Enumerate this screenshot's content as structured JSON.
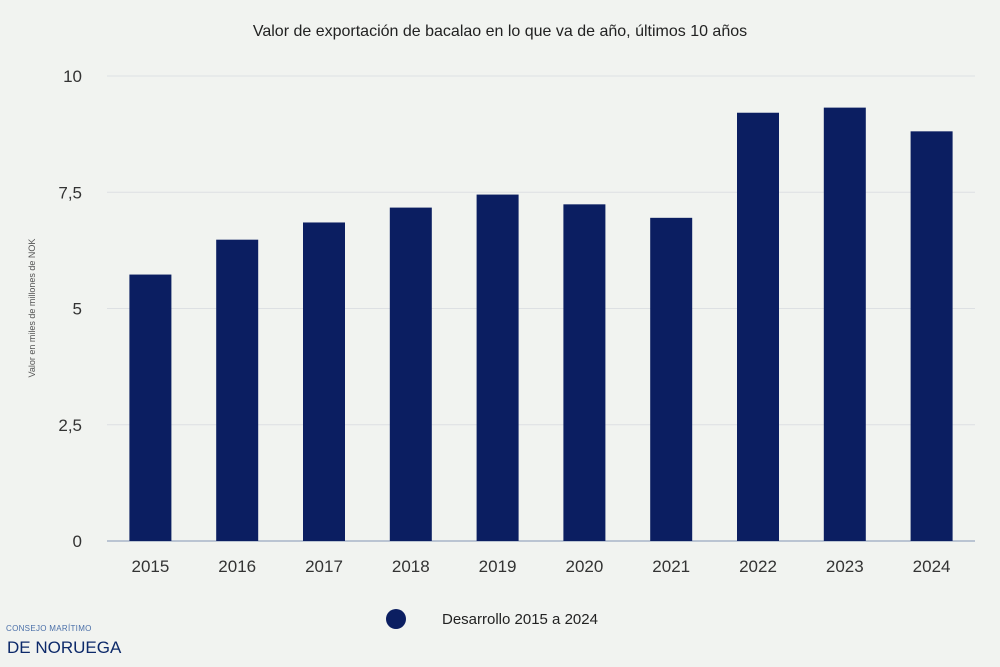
{
  "chart_data": {
    "type": "bar",
    "title": "Valor de exportación de bacalao en lo que va de año, últimos 10 años",
    "ylabel": "Valor en miles de millones de NOK",
    "xlabel": "",
    "categories": [
      "2015",
      "2016",
      "2017",
      "2018",
      "2019",
      "2020",
      "2021",
      "2022",
      "2023",
      "2024"
    ],
    "series": [
      {
        "name": "Desarrollo 2015 a 2024",
        "values": [
          5.73,
          6.48,
          6.85,
          7.17,
          7.45,
          7.24,
          6.95,
          9.21,
          9.32,
          8.81
        ],
        "color": "#0b1e61"
      }
    ],
    "ylim": [
      0,
      10
    ],
    "yticks": [
      0,
      2.5,
      5,
      7.5,
      10
    ],
    "ytick_labels": [
      "0",
      "2,5",
      "5",
      "7,5",
      "10"
    ],
    "grid": true,
    "legend_position": "bottom-center"
  },
  "logo": {
    "line1": "CONSEJO MARÍTIMO",
    "line2": "DE NORUEGA"
  }
}
